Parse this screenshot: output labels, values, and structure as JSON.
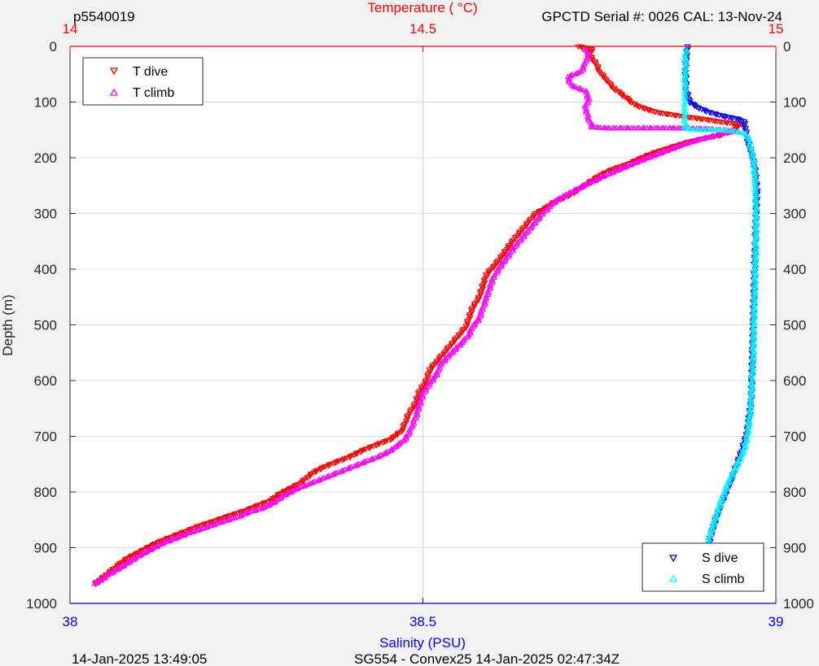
{
  "header": {
    "left": "p5540019",
    "right": "GPCTD Serial #: 0026 CAL: 13-Nov-24"
  },
  "footer": {
    "left": "14-Jan-2025 13:49:05",
    "center": "SG554 - Convex25 14-Jan-2025 02:47:34Z"
  },
  "colors": {
    "t_dive": "#ff0000",
    "t_climb": "#ff00ff",
    "s_dive": "#0000ff",
    "s_climb": "#00ffff",
    "temperature_axis": "#ff0000",
    "salinity_axis": "#0000ff",
    "axis": "#262626",
    "grid": "#dcdcdc",
    "background": "#f2f2f2",
    "plot_background": "#ffffff"
  },
  "chart_data": {
    "type": "scatter",
    "ylabel": "Depth (m)",
    "ylim": [
      0,
      1000
    ],
    "y_reversed": true,
    "y_ticks": [
      "0",
      "100",
      "200",
      "300",
      "400",
      "500",
      "600",
      "700",
      "800",
      "900",
      "1000"
    ],
    "top_axis": {
      "label": "Temperature (    °C)",
      "lim": [
        14,
        15
      ],
      "ticks": [
        "14",
        "14.5",
        "15"
      ]
    },
    "bottom_axis": {
      "label": "Salinity (PSU)",
      "lim": [
        38,
        39
      ],
      "ticks": [
        "38",
        "38.5",
        "39"
      ]
    },
    "grid": true,
    "legends": [
      {
        "placement": "top-left",
        "entries": [
          "T dive",
          "T climb"
        ]
      },
      {
        "placement": "bottom-right",
        "entries": [
          "S dive",
          "S climb"
        ]
      }
    ],
    "series": [
      {
        "name": "T dive",
        "axis": "temperature",
        "marker": "triangle-down",
        "points": [
          [
            14.72,
            0
          ],
          [
            14.74,
            5
          ],
          [
            14.735,
            15
          ],
          [
            14.745,
            30
          ],
          [
            14.75,
            45
          ],
          [
            14.76,
            60
          ],
          [
            14.77,
            75
          ],
          [
            14.78,
            85
          ],
          [
            14.79,
            95
          ],
          [
            14.8,
            105
          ],
          [
            14.815,
            112
          ],
          [
            14.83,
            118
          ],
          [
            14.85,
            122
          ],
          [
            14.87,
            126
          ],
          [
            14.895,
            130
          ],
          [
            14.92,
            135
          ],
          [
            14.95,
            140
          ],
          [
            14.94,
            150
          ],
          [
            14.92,
            160
          ],
          [
            14.9,
            165
          ],
          [
            14.875,
            172
          ],
          [
            14.855,
            180
          ],
          [
            14.83,
            190
          ],
          [
            14.81,
            200
          ],
          [
            14.79,
            212
          ],
          [
            14.77,
            220
          ],
          [
            14.75,
            232
          ],
          [
            14.735,
            245
          ],
          [
            14.715,
            262
          ],
          [
            14.7,
            272
          ],
          [
            14.685,
            280
          ],
          [
            14.675,
            290
          ],
          [
            14.66,
            300
          ],
          [
            14.65,
            315
          ],
          [
            14.64,
            330
          ],
          [
            14.63,
            345
          ],
          [
            14.62,
            362
          ],
          [
            14.61,
            380
          ],
          [
            14.6,
            395
          ],
          [
            14.59,
            410
          ],
          [
            14.585,
            430
          ],
          [
            14.58,
            450
          ],
          [
            14.57,
            470
          ],
          [
            14.565,
            490
          ],
          [
            14.56,
            505
          ],
          [
            14.55,
            520
          ],
          [
            14.54,
            535
          ],
          [
            14.53,
            550
          ],
          [
            14.52,
            565
          ],
          [
            14.51,
            580
          ],
          [
            14.505,
            600
          ],
          [
            14.495,
            620
          ],
          [
            14.49,
            640
          ],
          [
            14.48,
            660
          ],
          [
            14.475,
            675
          ],
          [
            14.47,
            690
          ],
          [
            14.455,
            705
          ],
          [
            14.435,
            715
          ],
          [
            14.415,
            725
          ],
          [
            14.4,
            735
          ],
          [
            14.38,
            745
          ],
          [
            14.36,
            755
          ],
          [
            14.345,
            765
          ],
          [
            14.335,
            775
          ],
          [
            14.325,
            785
          ],
          [
            14.31,
            795
          ],
          [
            14.295,
            805
          ],
          [
            14.285,
            815
          ],
          [
            14.265,
            825
          ],
          [
            14.245,
            835
          ],
          [
            14.225,
            843
          ],
          [
            14.205,
            852
          ],
          [
            14.185,
            860
          ],
          [
            14.165,
            870
          ],
          [
            14.145,
            880
          ],
          [
            14.125,
            890
          ],
          [
            14.11,
            900
          ],
          [
            14.095,
            910
          ],
          [
            14.08,
            920
          ],
          [
            14.07,
            930
          ],
          [
            14.06,
            940
          ],
          [
            14.05,
            950
          ],
          [
            14.04,
            960
          ],
          [
            14.035,
            965
          ]
        ]
      },
      {
        "name": "T climb",
        "axis": "temperature",
        "marker": "triangle-up",
        "points": [
          [
            14.035,
            965
          ],
          [
            14.045,
            958
          ],
          [
            14.055,
            948
          ],
          [
            14.07,
            937
          ],
          [
            14.085,
            925
          ],
          [
            14.1,
            913
          ],
          [
            14.115,
            903
          ],
          [
            14.13,
            893
          ],
          [
            14.15,
            883
          ],
          [
            14.17,
            873
          ],
          [
            14.19,
            865
          ],
          [
            14.21,
            856
          ],
          [
            14.235,
            846
          ],
          [
            14.255,
            836
          ],
          [
            14.275,
            828
          ],
          [
            14.29,
            818
          ],
          [
            14.305,
            805
          ],
          [
            14.32,
            795
          ],
          [
            14.34,
            785
          ],
          [
            14.36,
            775
          ],
          [
            14.38,
            765
          ],
          [
            14.4,
            755
          ],
          [
            14.42,
            745
          ],
          [
            14.44,
            735
          ],
          [
            14.455,
            725
          ],
          [
            14.465,
            715
          ],
          [
            14.475,
            705
          ],
          [
            14.48,
            695
          ],
          [
            14.485,
            680
          ],
          [
            14.49,
            665
          ],
          [
            14.495,
            645
          ],
          [
            14.5,
            625
          ],
          [
            14.51,
            605
          ],
          [
            14.52,
            588
          ],
          [
            14.525,
            572
          ],
          [
            14.535,
            558
          ],
          [
            14.545,
            545
          ],
          [
            14.555,
            532
          ],
          [
            14.565,
            518
          ],
          [
            14.57,
            505
          ],
          [
            14.58,
            488
          ],
          [
            14.585,
            470
          ],
          [
            14.59,
            452
          ],
          [
            14.595,
            432
          ],
          [
            14.6,
            415
          ],
          [
            14.61,
            395
          ],
          [
            14.62,
            378
          ],
          [
            14.63,
            360
          ],
          [
            14.64,
            345
          ],
          [
            14.65,
            330
          ],
          [
            14.66,
            315
          ],
          [
            14.67,
            300
          ],
          [
            14.68,
            288
          ],
          [
            14.69,
            276
          ],
          [
            14.705,
            265
          ],
          [
            14.725,
            252
          ],
          [
            14.745,
            240
          ],
          [
            14.765,
            228
          ],
          [
            14.79,
            215
          ],
          [
            14.815,
            202
          ],
          [
            14.84,
            190
          ],
          [
            14.865,
            178
          ],
          [
            14.89,
            168
          ],
          [
            14.92,
            158
          ],
          [
            14.945,
            152
          ],
          [
            14.9,
            148
          ],
          [
            14.85,
            147
          ],
          [
            14.8,
            147
          ],
          [
            14.76,
            147
          ],
          [
            14.74,
            145
          ],
          [
            14.735,
            130
          ],
          [
            14.73,
            110
          ],
          [
            14.735,
            95
          ],
          [
            14.73,
            80
          ],
          [
            14.71,
            70
          ],
          [
            14.705,
            55
          ],
          [
            14.725,
            45
          ],
          [
            14.73,
            30
          ],
          [
            14.735,
            15
          ],
          [
            14.73,
            5
          ]
        ]
      },
      {
        "name": "S dive",
        "axis": "salinity",
        "marker": "triangle-down",
        "points": [
          [
            38.875,
            0
          ],
          [
            38.873,
            20
          ],
          [
            38.872,
            50
          ],
          [
            38.873,
            80
          ],
          [
            38.878,
            100
          ],
          [
            38.89,
            110
          ],
          [
            38.905,
            118
          ],
          [
            38.925,
            125
          ],
          [
            38.945,
            130
          ],
          [
            38.955,
            135
          ],
          [
            38.957,
            150
          ],
          [
            38.96,
            170
          ],
          [
            38.965,
            190
          ],
          [
            38.97,
            215
          ],
          [
            38.972,
            240
          ],
          [
            38.973,
            265
          ],
          [
            38.972,
            300
          ],
          [
            38.971,
            350
          ],
          [
            38.97,
            400
          ],
          [
            38.969,
            450
          ],
          [
            38.968,
            500
          ],
          [
            38.967,
            550
          ],
          [
            38.966,
            600
          ],
          [
            38.965,
            640
          ],
          [
            38.962,
            670
          ],
          [
            38.958,
            700
          ],
          [
            38.952,
            725
          ],
          [
            38.945,
            750
          ],
          [
            38.938,
            775
          ],
          [
            38.93,
            800
          ],
          [
            38.922,
            825
          ],
          [
            38.915,
            850
          ],
          [
            38.91,
            870
          ],
          [
            38.905,
            895
          ],
          [
            38.9,
            920
          ],
          [
            38.897,
            940
          ],
          [
            38.895,
            960
          ]
        ]
      },
      {
        "name": "S climb",
        "axis": "salinity",
        "marker": "triangle-up",
        "points": [
          [
            38.89,
            965
          ],
          [
            38.893,
            945
          ],
          [
            38.896,
            925
          ],
          [
            38.9,
            905
          ],
          [
            38.905,
            885
          ],
          [
            38.91,
            865
          ],
          [
            38.915,
            845
          ],
          [
            38.92,
            825
          ],
          [
            38.926,
            805
          ],
          [
            38.932,
            785
          ],
          [
            38.94,
            765
          ],
          [
            38.948,
            745
          ],
          [
            38.955,
            725
          ],
          [
            38.96,
            700
          ],
          [
            38.963,
            670
          ],
          [
            38.965,
            640
          ],
          [
            38.966,
            610
          ],
          [
            38.967,
            580
          ],
          [
            38.968,
            550
          ],
          [
            38.969,
            500
          ],
          [
            38.97,
            450
          ],
          [
            38.971,
            400
          ],
          [
            38.972,
            350
          ],
          [
            38.972,
            300
          ],
          [
            38.971,
            260
          ],
          [
            38.97,
            230
          ],
          [
            38.968,
            205
          ],
          [
            38.965,
            185
          ],
          [
            38.962,
            168
          ],
          [
            38.958,
            157
          ],
          [
            38.94,
            152
          ],
          [
            38.91,
            150
          ],
          [
            38.89,
            150
          ],
          [
            38.872,
            148
          ],
          [
            38.871,
            130
          ],
          [
            38.871,
            110
          ],
          [
            38.871,
            90
          ],
          [
            38.871,
            70
          ],
          [
            38.871,
            50
          ],
          [
            38.872,
            30
          ],
          [
            38.872,
            15
          ],
          [
            38.873,
            5
          ]
        ]
      }
    ]
  }
}
